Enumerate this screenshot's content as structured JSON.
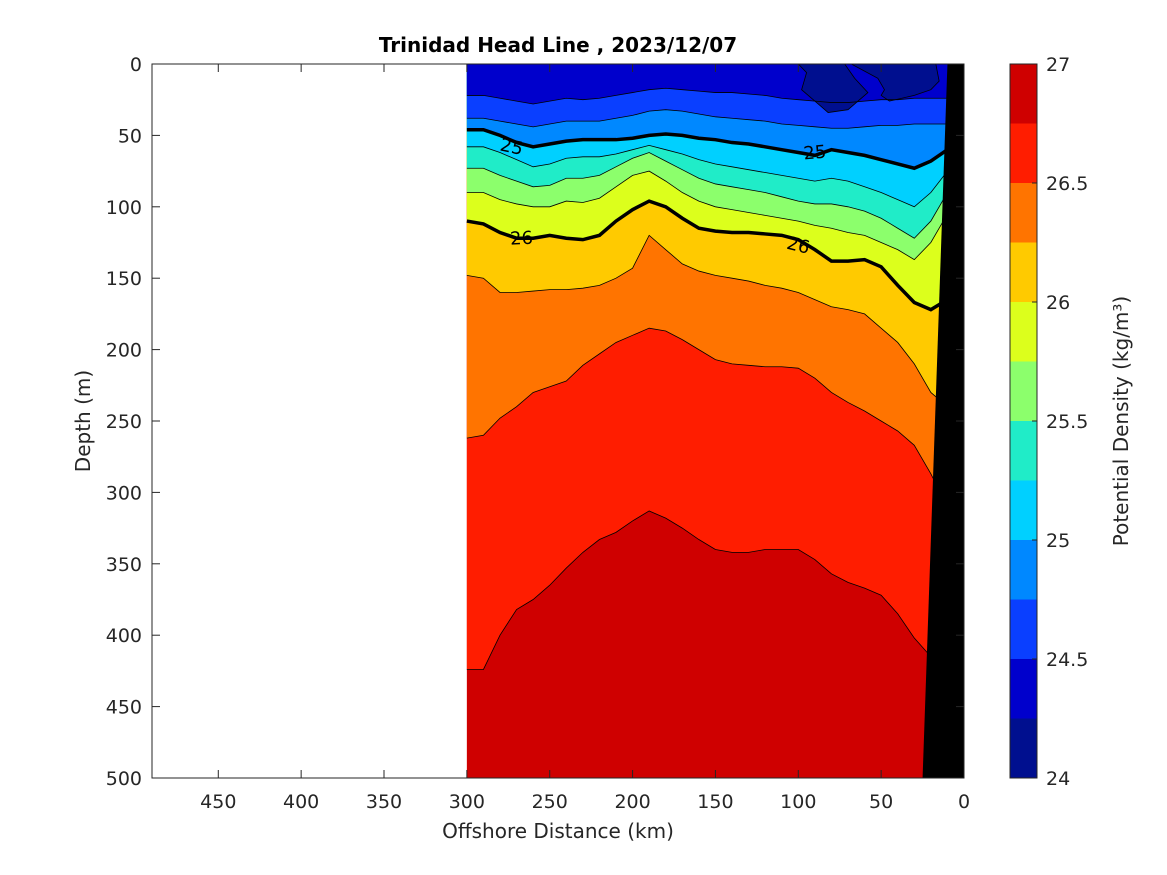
{
  "chart_data": {
    "type": "contour",
    "title": "Trinidad Head Line , 2023/12/07",
    "xlabel": "Offshore Distance (km)",
    "ylabel": "Depth (m)",
    "xlim": [
      490,
      0
    ],
    "ylim": [
      0,
      500
    ],
    "x_reversed": true,
    "y_reversed": true,
    "x_ticks": [
      450,
      400,
      350,
      300,
      250,
      200,
      150,
      100,
      50,
      0
    ],
    "y_ticks": [
      0,
      50,
      100,
      150,
      200,
      250,
      300,
      350,
      400,
      450,
      500
    ],
    "section_x_range_km": [
      300,
      10
    ],
    "colorbar": {
      "label": "Potential Density (kg/m³)",
      "lim": [
        24,
        27
      ],
      "ticks": [
        24,
        24.5,
        25,
        25.5,
        26,
        26.5,
        27
      ],
      "levels": [
        24,
        24.25,
        24.5,
        24.75,
        25,
        25.25,
        25.5,
        25.75,
        26,
        26.25,
        26.5,
        26.75,
        27
      ],
      "colors": [
        "#000f8f",
        "#0000cc",
        "#0a3fff",
        "#0088ff",
        "#00d0ff",
        "#20ecc8",
        "#8cff6c",
        "#dcff1c",
        "#ffca00",
        "#ff7400",
        "#ff1d00",
        "#cf0000"
      ]
    },
    "contour_label_values": [
      "25",
      "25",
      "26",
      "26"
    ],
    "contour_depths_m": {
      "x_km": [
        300,
        290,
        280,
        270,
        260,
        250,
        240,
        230,
        220,
        210,
        200,
        190,
        180,
        170,
        160,
        150,
        140,
        130,
        120,
        110,
        100,
        90,
        80,
        70,
        60,
        50,
        40,
        30,
        20,
        10
      ],
      "24.5": [
        22,
        22,
        24,
        26,
        28,
        26,
        24,
        25,
        24,
        22,
        20,
        18,
        17,
        18,
        19,
        20,
        20,
        21,
        22,
        24,
        25,
        26,
        27,
        27,
        26,
        25,
        25,
        24,
        24,
        24
      ],
      "24.75": [
        38,
        38,
        40,
        42,
        44,
        42,
        40,
        40,
        40,
        38,
        36,
        33,
        32,
        33,
        35,
        37,
        38,
        39,
        40,
        42,
        43,
        44,
        45,
        45,
        44,
        43,
        43,
        42,
        42,
        42
      ],
      "25.0": [
        46,
        46,
        50,
        55,
        58,
        56,
        54,
        53,
        53,
        53,
        52,
        50,
        49,
        50,
        52,
        53,
        55,
        56,
        58,
        60,
        62,
        64,
        60,
        62,
        64,
        67,
        70,
        73,
        68,
        60
      ],
      "25.25": [
        58,
        58,
        62,
        67,
        72,
        70,
        66,
        65,
        65,
        63,
        60,
        57,
        60,
        63,
        67,
        70,
        72,
        74,
        76,
        78,
        80,
        82,
        80,
        82,
        86,
        90,
        95,
        100,
        90,
        75
      ],
      "25.5": [
        73,
        73,
        78,
        82,
        86,
        85,
        80,
        80,
        78,
        72,
        66,
        62,
        68,
        74,
        80,
        84,
        86,
        88,
        90,
        93,
        96,
        98,
        98,
        100,
        103,
        108,
        115,
        122,
        110,
        90
      ],
      "25.75": [
        90,
        90,
        95,
        98,
        100,
        100,
        96,
        97,
        94,
        86,
        78,
        75,
        82,
        90,
        96,
        100,
        102,
        104,
        106,
        108,
        110,
        113,
        115,
        118,
        120,
        125,
        130,
        137,
        125,
        105
      ],
      "26.0": [
        110,
        112,
        118,
        122,
        122,
        120,
        122,
        123,
        120,
        110,
        102,
        96,
        100,
        108,
        115,
        117,
        118,
        118,
        119,
        120,
        123,
        130,
        138,
        138,
        137,
        142,
        155,
        167,
        172,
        165
      ],
      "26.25": [
        148,
        150,
        160,
        160,
        159,
        158,
        158,
        157,
        155,
        150,
        143,
        120,
        130,
        140,
        145,
        148,
        150,
        152,
        155,
        157,
        160,
        165,
        170,
        172,
        175,
        185,
        195,
        210,
        230,
        240
      ],
      "26.5": [
        262,
        260,
        248,
        240,
        230,
        226,
        222,
        211,
        203,
        195,
        190,
        185,
        187,
        193,
        200,
        207,
        210,
        211,
        212,
        212,
        213,
        220,
        230,
        237,
        243,
        250,
        257,
        267,
        287,
        310
      ],
      "26.75": [
        424,
        424,
        400,
        382,
        375,
        365,
        353,
        342,
        333,
        328,
        320,
        313,
        318,
        325,
        333,
        340,
        342,
        342,
        340,
        340,
        340,
        347,
        357,
        363,
        367,
        372,
        385,
        402,
        415,
        430
      ]
    }
  }
}
